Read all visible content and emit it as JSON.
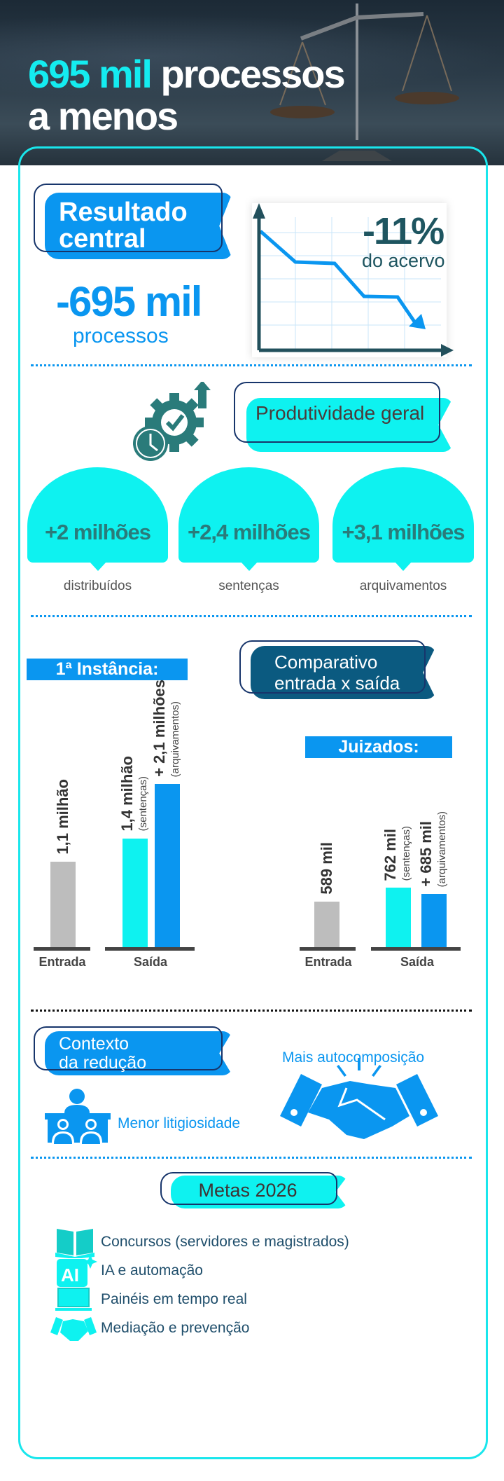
{
  "hero": {
    "title_highlight": "695 mil",
    "title_rest": "processos",
    "title_line2": "a menos"
  },
  "resultado": {
    "banner": [
      "Resultado",
      "central"
    ],
    "value": "-695 mil",
    "unit": "processos",
    "pct": "-11%",
    "pct_label": "do acervo"
  },
  "produtividade": {
    "banner": "Produtividade geral",
    "items": [
      {
        "value": "+2 milhões",
        "label": "distribuídos"
      },
      {
        "value": "+2,4 milhões",
        "label": "sentenças"
      },
      {
        "value": "+3,1 milhões",
        "label": "arquivamentos"
      }
    ]
  },
  "comparativo": {
    "banner": [
      "Comparativo",
      "entrada x saída"
    ]
  },
  "chart_data": [
    {
      "type": "bar",
      "title": "1ª Instância:",
      "categories": [
        "Entrada",
        "Saída"
      ],
      "unit": "mil",
      "bars": [
        {
          "category": "Entrada",
          "value": 1100,
          "label": "1,1 milhão",
          "sub": "",
          "color": "#bdbdbd"
        },
        {
          "category": "Saída",
          "value": 1400,
          "label": "1,4 milhão",
          "sub": "(sentenças)",
          "color": "#0ef2f0"
        },
        {
          "category": "Saída",
          "value": 2100,
          "label": "+ 2,1 milhões",
          "sub": "(arquivamentos)",
          "color": "#0a96f0"
        }
      ]
    },
    {
      "type": "bar",
      "title": "Juizados:",
      "categories": [
        "Entrada",
        "Saída"
      ],
      "unit": "mil",
      "bars": [
        {
          "category": "Entrada",
          "value": 589,
          "label": "589 mil",
          "sub": "",
          "color": "#bdbdbd"
        },
        {
          "category": "Saída",
          "value": 762,
          "label": "762 mil",
          "sub": "(sentenças)",
          "color": "#0ef2f0"
        },
        {
          "category": "Saída",
          "value": 685,
          "label": "+ 685 mil",
          "sub": "(arquivamentos)",
          "color": "#0a96f0"
        }
      ]
    }
  ],
  "contexto": {
    "banner": [
      "Contexto",
      "da redução"
    ],
    "item1": "Menor litigiosidade",
    "item2": "Mais autocomposição"
  },
  "metas": {
    "banner": "Metas 2026",
    "items": [
      {
        "icon": "book-icon",
        "text": "Concursos (servidores e magistrados)"
      },
      {
        "icon": "ai-icon",
        "text": "IA e automação"
      },
      {
        "icon": "laptop-icon",
        "text": "Painéis em tempo real"
      },
      {
        "icon": "handshake-icon",
        "text": "Mediação e prevenção"
      }
    ]
  },
  "colors": {
    "cyan": "#0ef2f0",
    "blue": "#0a96f0",
    "navy": "#0b5a80",
    "teal": "#2a7b7a",
    "gray": "#bdbdbd"
  }
}
